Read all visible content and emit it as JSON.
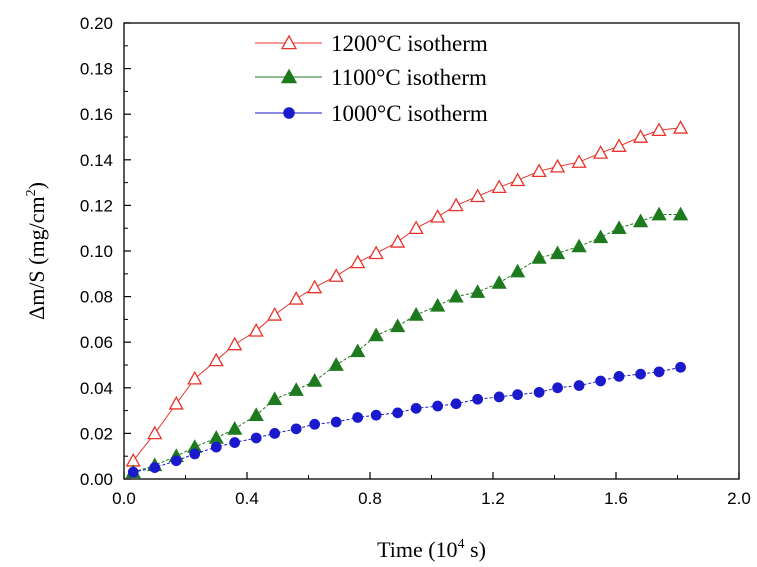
{
  "chart_data": {
    "type": "line",
    "xlabel": "Time (10",
    "xlabel_sup": "4",
    "xlabel_end": " s)",
    "ylabel": "Δm/S (mg/cm",
    "ylabel_sup": "2",
    "ylabel_end": ")",
    "xlim": [
      0.0,
      2.0
    ],
    "ylim": [
      0.0,
      0.2
    ],
    "xticks": [
      "0.0",
      "0.4",
      "0.8",
      "1.2",
      "1.6",
      "2.0"
    ],
    "yticks": [
      "0.00",
      "0.02",
      "0.04",
      "0.06",
      "0.08",
      "0.10",
      "0.12",
      "0.14",
      "0.16",
      "0.18",
      "0.20"
    ],
    "grid": false,
    "legend_position": "top-center",
    "series": [
      {
        "name": "1200°C isotherm",
        "color": "#e8332b",
        "marker": "open-triangle",
        "x": [
          0.03,
          0.1,
          0.17,
          0.23,
          0.3,
          0.36,
          0.43,
          0.49,
          0.56,
          0.62,
          0.69,
          0.76,
          0.82,
          0.89,
          0.95,
          1.02,
          1.08,
          1.15,
          1.22,
          1.28,
          1.35,
          1.41,
          1.48,
          1.55,
          1.61,
          1.68,
          1.74,
          1.81
        ],
        "y": [
          0.008,
          0.02,
          0.033,
          0.044,
          0.052,
          0.059,
          0.065,
          0.072,
          0.079,
          0.084,
          0.089,
          0.095,
          0.099,
          0.104,
          0.11,
          0.115,
          0.12,
          0.124,
          0.128,
          0.131,
          0.135,
          0.137,
          0.139,
          0.143,
          0.146,
          0.15,
          0.153,
          0.154
        ]
      },
      {
        "name": "1100°C isotherm",
        "color": "#1e7a1e",
        "marker": "filled-triangle",
        "x": [
          0.03,
          0.1,
          0.17,
          0.23,
          0.3,
          0.36,
          0.43,
          0.49,
          0.56,
          0.62,
          0.69,
          0.76,
          0.82,
          0.89,
          0.95,
          1.02,
          1.08,
          1.15,
          1.22,
          1.28,
          1.35,
          1.41,
          1.48,
          1.55,
          1.61,
          1.68,
          1.74,
          1.81
        ],
        "y": [
          0.003,
          0.006,
          0.01,
          0.014,
          0.018,
          0.022,
          0.028,
          0.035,
          0.039,
          0.043,
          0.05,
          0.056,
          0.063,
          0.067,
          0.072,
          0.076,
          0.08,
          0.082,
          0.086,
          0.091,
          0.097,
          0.099,
          0.102,
          0.106,
          0.11,
          0.113,
          0.116,
          0.116
        ]
      },
      {
        "name": "1000°C isotherm",
        "color": "#1a1acc",
        "marker": "filled-circle",
        "x": [
          0.03,
          0.1,
          0.17,
          0.23,
          0.3,
          0.36,
          0.43,
          0.49,
          0.56,
          0.62,
          0.69,
          0.76,
          0.82,
          0.89,
          0.95,
          1.02,
          1.08,
          1.15,
          1.22,
          1.28,
          1.35,
          1.41,
          1.48,
          1.55,
          1.61,
          1.68,
          1.74,
          1.81
        ],
        "y": [
          0.003,
          0.005,
          0.008,
          0.011,
          0.014,
          0.016,
          0.018,
          0.02,
          0.022,
          0.024,
          0.025,
          0.027,
          0.028,
          0.029,
          0.031,
          0.032,
          0.033,
          0.035,
          0.036,
          0.037,
          0.038,
          0.04,
          0.041,
          0.043,
          0.045,
          0.046,
          0.047,
          0.049
        ]
      }
    ]
  }
}
